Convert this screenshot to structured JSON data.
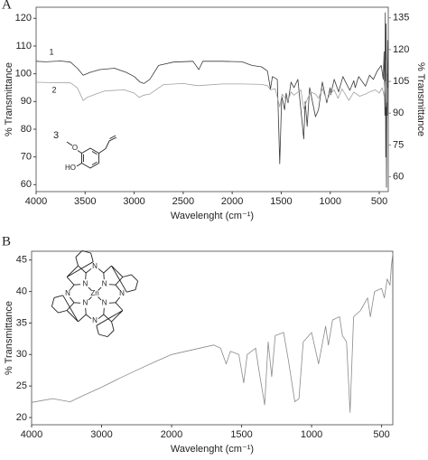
{
  "chart_data": [
    {
      "type": "line",
      "panel_label": "A",
      "xlabel": "Wavelenght (cm⁻¹)",
      "ylabel": "% Transmittance",
      "y2label": "% Transmittance",
      "xlim": [
        4000,
        408
      ],
      "xticks": [
        4000,
        3500,
        3000,
        2500,
        2000,
        1500,
        1000,
        500
      ],
      "ylim": [
        57.5,
        124
      ],
      "yticks": [
        60,
        70,
        80,
        90,
        100,
        110,
        120
      ],
      "y2lim": [
        53,
        140
      ],
      "y2ticks": [
        60,
        75,
        90,
        105,
        120,
        135
      ],
      "y2color": "#8c8c8c",
      "grid": false,
      "annotations": [
        "3"
      ],
      "structure_atoms": [
        "O",
        "HO"
      ],
      "series": [
        {
          "name": "1",
          "color": "#3a3a3a",
          "axis": "y",
          "x": [
            4000,
            3900,
            3750,
            3650,
            3580,
            3520,
            3450,
            3350,
            3200,
            3080,
            3000,
            2940,
            2900,
            2840,
            2750,
            2600,
            2400,
            2340,
            2300,
            2100,
            1900,
            1800,
            1700,
            1640,
            1610,
            1590,
            1540,
            1515,
            1495,
            1465,
            1450,
            1430,
            1400,
            1370,
            1330,
            1270,
            1255,
            1235,
            1210,
            1150,
            1120,
            1080,
            1035,
            1000,
            995,
            960,
            915,
            870,
            850,
            800,
            760,
            745,
            710,
            640,
            600,
            560,
            520,
            480,
            460,
            450,
            442,
            438,
            434,
            430,
            426,
            422,
            418,
            414,
            410
          ],
          "values": [
            104.5,
            104.3,
            104.6,
            104.2,
            102,
            99.5,
            100.5,
            101.5,
            102,
            100.5,
            99,
            97,
            96.5,
            98,
            103,
            104.2,
            104.5,
            101.5,
            104.5,
            104.5,
            104.3,
            103,
            102.5,
            101,
            94.5,
            99,
            98,
            67.5,
            92,
            87,
            93,
            89.5,
            97,
            95,
            98,
            76.5,
            90,
            81,
            95,
            84.5,
            87,
            97,
            89.5,
            95,
            92.5,
            98,
            93.5,
            99,
            97.5,
            94,
            97.5,
            95,
            99,
            95.5,
            99.5,
            98,
            101,
            103,
            98,
            108,
            85,
            122,
            70,
            118,
            59,
            100,
            85,
            112,
            95
          ]
        },
        {
          "name": "2",
          "color": "#a0a0a0",
          "axis": "y2",
          "x": [
            4000,
            3800,
            3650,
            3580,
            3520,
            3480,
            3420,
            3300,
            3100,
            3000,
            2950,
            2900,
            2840,
            2700,
            2500,
            2350,
            2100,
            1900,
            1700,
            1640,
            1610,
            1560,
            1515,
            1490,
            1460,
            1430,
            1400,
            1370,
            1300,
            1270,
            1240,
            1200,
            1150,
            1120,
            1080,
            1035,
            1000,
            960,
            920,
            880,
            810,
            760,
            700,
            640,
            600,
            540,
            500,
            470,
            450,
            440,
            432,
            426,
            420
          ],
          "values": [
            104.6,
            104.4,
            104.3,
            102,
            96,
            97.5,
            98.5,
            100.5,
            101,
            99.5,
            97.5,
            98.5,
            99,
            103.5,
            104,
            103,
            103.8,
            103.8,
            103.6,
            103,
            101,
            101.5,
            93,
            99,
            97,
            96,
            100,
            98.5,
            101,
            92,
            96,
            100,
            99,
            97,
            101.5,
            96,
            99,
            101,
            97,
            101.5,
            96,
            100,
            98,
            99,
            100,
            101,
            99.5,
            102,
            98,
            105,
            93,
            115,
            95
          ]
        }
      ]
    },
    {
      "type": "line",
      "panel_label": "B",
      "xlabel": "Wavelenght (cm⁻¹)",
      "ylabel": "% Transmittance",
      "xlim": [
        4000,
        420
      ],
      "xscale": {
        "break": 2000,
        "factor": 2
      },
      "xticks": [
        4000,
        3000,
        2000,
        1500,
        1000,
        500
      ],
      "ylim": [
        18.85,
        46.4
      ],
      "yticks": [
        20,
        25,
        30,
        35,
        40,
        45
      ],
      "grid": false,
      "structure_atoms": [
        "N",
        "N",
        "N",
        "N",
        "Zn",
        "N",
        "N",
        "N",
        "N"
      ],
      "series": [
        {
          "color": "#8a8a8a",
          "axis": "y",
          "x": [
            4000,
            3850,
            3700,
            3600,
            3450,
            3300,
            3000,
            2750,
            2500,
            2250,
            2000,
            1800,
            1700,
            1650,
            1610,
            1580,
            1520,
            1485,
            1460,
            1400,
            1380,
            1335,
            1310,
            1285,
            1260,
            1200,
            1165,
            1120,
            1090,
            1060,
            1000,
            950,
            900,
            880,
            850,
            800,
            780,
            750,
            725,
            700,
            650,
            600,
            580,
            550,
            500,
            480,
            460,
            440,
            430,
            420
          ],
          "values": [
            22.4,
            22.7,
            23,
            22.8,
            22.5,
            23.3,
            24.8,
            26.2,
            27.5,
            28.8,
            30,
            31,
            31.5,
            31,
            28.5,
            30.5,
            30,
            25.5,
            30,
            31,
            28,
            22,
            32,
            26.5,
            33,
            33.5,
            29,
            22.5,
            23,
            32,
            33.5,
            28.5,
            34.5,
            31.5,
            35.5,
            36,
            33,
            32,
            20.8,
            36,
            37,
            39,
            36,
            40,
            40.5,
            39,
            42,
            41,
            44,
            46
          ]
        }
      ]
    }
  ]
}
